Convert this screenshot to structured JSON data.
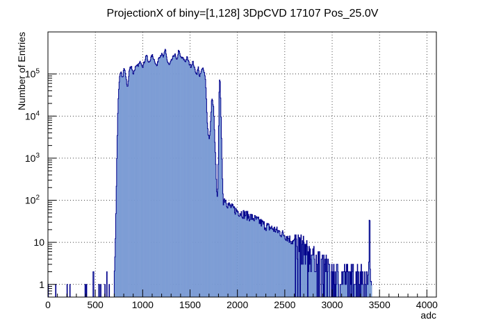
{
  "chart_data": {
    "type": "histogram",
    "title": "ProjectionX of biny=[1,128] 3DpCVD 17107 Pos_25.0V",
    "xlabel": "adc",
    "ylabel": "Number of Entries",
    "xlim": [
      0,
      4100
    ],
    "ylim": [
      0.5,
      1000000
    ],
    "yscale": "log",
    "grid": true,
    "fill_color": "#7b9bd4",
    "line_color": "#00008b",
    "x_ticks": [
      0,
      500,
      1000,
      1500,
      2000,
      2500,
      3000,
      3500,
      4000
    ],
    "y_ticks": [
      {
        "value": 1,
        "label": "1",
        "exp": ""
      },
      {
        "value": 10,
        "label": "10",
        "exp": ""
      },
      {
        "value": 100,
        "label": "10",
        "exp": "2"
      },
      {
        "value": 1000,
        "label": "10",
        "exp": "3"
      },
      {
        "value": 10000,
        "label": "10",
        "exp": "4"
      },
      {
        "value": 100000,
        "label": "10",
        "exp": "5"
      }
    ],
    "profile": [
      [
        0,
        1
      ],
      [
        230,
        1
      ],
      [
        480,
        1
      ],
      [
        500,
        1.5
      ],
      [
        590,
        1.3
      ],
      [
        640,
        1.5
      ],
      [
        680,
        1.2
      ],
      [
        700,
        1.5
      ],
      [
        710,
        6
      ],
      [
        720,
        100
      ],
      [
        730,
        2000
      ],
      [
        740,
        20000
      ],
      [
        750,
        60000
      ],
      [
        760,
        90000
      ],
      [
        770,
        110000
      ],
      [
        790,
        80000
      ],
      [
        800,
        140000
      ],
      [
        820,
        100000
      ],
      [
        840,
        45000
      ],
      [
        860,
        130000
      ],
      [
        880,
        160000
      ],
      [
        900,
        100000
      ],
      [
        920,
        140000
      ],
      [
        950,
        160000
      ],
      [
        980,
        200000
      ],
      [
        1000,
        150000
      ],
      [
        1020,
        200000
      ],
      [
        1040,
        300000
      ],
      [
        1060,
        180000
      ],
      [
        1080,
        220000
      ],
      [
        1100,
        280000
      ],
      [
        1130,
        200000
      ],
      [
        1150,
        150000
      ],
      [
        1170,
        250000
      ],
      [
        1200,
        300000
      ],
      [
        1220,
        250000
      ],
      [
        1240,
        400000
      ],
      [
        1260,
        200000
      ],
      [
        1280,
        160000
      ],
      [
        1300,
        200000
      ],
      [
        1320,
        250000
      ],
      [
        1340,
        300000
      ],
      [
        1360,
        200000
      ],
      [
        1380,
        380000
      ],
      [
        1400,
        250000
      ],
      [
        1430,
        230000
      ],
      [
        1450,
        200000
      ],
      [
        1470,
        250000
      ],
      [
        1490,
        180000
      ],
      [
        1510,
        150000
      ],
      [
        1530,
        200000
      ],
      [
        1550,
        130000
      ],
      [
        1570,
        100000
      ],
      [
        1590,
        150000
      ],
      [
        1600,
        80000
      ],
      [
        1620,
        120000
      ],
      [
        1640,
        140000
      ],
      [
        1660,
        90000
      ],
      [
        1670,
        40000
      ],
      [
        1680,
        8000
      ],
      [
        1690,
        4000
      ],
      [
        1700,
        3000
      ],
      [
        1710,
        3500
      ],
      [
        1720,
        9000
      ],
      [
        1730,
        30000
      ],
      [
        1740,
        20000
      ],
      [
        1750,
        15000
      ],
      [
        1760,
        3000
      ],
      [
        1770,
        1000
      ],
      [
        1780,
        200
      ],
      [
        1790,
        100
      ],
      [
        1800,
        1500
      ],
      [
        1805,
        20000
      ],
      [
        1810,
        60000
      ],
      [
        1815,
        100000
      ],
      [
        1820,
        50000
      ],
      [
        1830,
        5000
      ],
      [
        1840,
        500
      ],
      [
        1850,
        100
      ],
      [
        1870,
        110
      ],
      [
        1900,
        80
      ],
      [
        1950,
        65
      ],
      [
        2000,
        55
      ],
      [
        2100,
        45
      ],
      [
        2200,
        35
      ],
      [
        2300,
        25
      ],
      [
        2400,
        20
      ],
      [
        2500,
        15
      ],
      [
        2600,
        10
      ],
      [
        2700,
        7
      ],
      [
        2800,
        4
      ],
      [
        2900,
        3
      ],
      [
        3000,
        2
      ],
      [
        3100,
        1.5
      ],
      [
        3200,
        1.5
      ],
      [
        3300,
        1.5
      ],
      [
        3380,
        1.2
      ],
      [
        3390,
        5
      ],
      [
        3395,
        250
      ],
      [
        3400,
        5
      ],
      [
        3405,
        1.2
      ],
      [
        3420,
        1
      ]
    ]
  }
}
